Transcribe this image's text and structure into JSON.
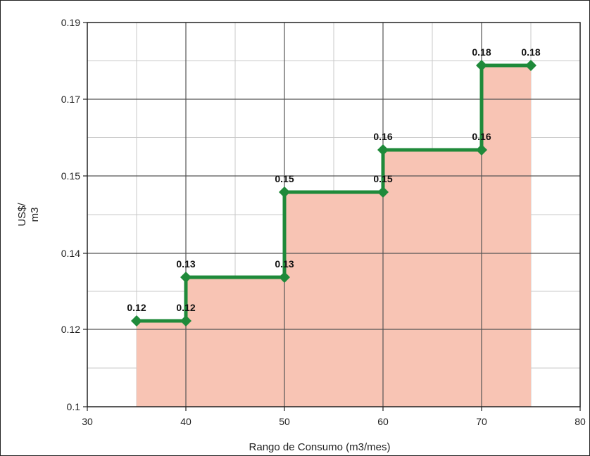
{
  "chart_data": {
    "type": "line",
    "step": true,
    "xlabel": "Rango de Consumo (m3/mes)",
    "ylabel": "US$/ m3",
    "xlim": [
      30,
      80
    ],
    "ylim": [
      0.1,
      0.19
    ],
    "x_ticks": [
      30,
      40,
      50,
      60,
      70,
      80
    ],
    "x_tick_labels": [
      "30",
      "40",
      "50",
      "60",
      "70",
      "80"
    ],
    "y_tick_labels": [
      "0.1",
      "0.12",
      "0.14",
      "0.15",
      "0.17",
      "0.19"
    ],
    "grid": true,
    "series": [
      {
        "points": [
          {
            "x": 35,
            "y": 0.12,
            "label": "0.12"
          },
          {
            "x": 40,
            "y": 0.12,
            "label": "0.12"
          },
          {
            "x": 40,
            "y": 0.13,
            "label": "0.13"
          },
          {
            "x": 50,
            "y": 0.13,
            "label": "0.13"
          },
          {
            "x": 50,
            "y": 0.15,
            "label": "0.15"
          },
          {
            "x": 60,
            "y": 0.15,
            "label": "0.15"
          },
          {
            "x": 60,
            "y": 0.16,
            "label": "0.16"
          },
          {
            "x": 70,
            "y": 0.16,
            "label": "0.16"
          },
          {
            "x": 70,
            "y": 0.18,
            "label": "0.18"
          },
          {
            "x": 75,
            "y": 0.18,
            "label": "0.18"
          }
        ]
      }
    ],
    "line_color": "#1f8a3a",
    "fill_color": "#f8c4b4"
  }
}
